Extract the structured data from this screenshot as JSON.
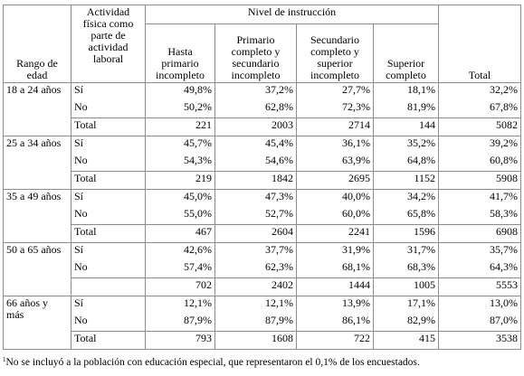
{
  "table": {
    "header": {
      "age": "Rango de edad",
      "activity": "Actividad física como parte de actividad laboral",
      "level": "Nivel de instrucción",
      "columns": [
        "Hasta primario incompleto",
        "Primario completo y secundario incompleto",
        "Secundario completo y superior incompleto",
        "Superior completo"
      ],
      "total": "Total"
    },
    "groups": [
      {
        "label": "18 a 24 años",
        "rows": [
          {
            "label": "Sí",
            "cells": [
              "49,8%",
              "37,2%",
              "27,7%",
              "18,1%",
              "32,2%"
            ]
          },
          {
            "label": "No",
            "cells": [
              "50,2%",
              "62,8%",
              "72,3%",
              "81,9%",
              "67,8%"
            ]
          },
          {
            "label": "Total",
            "cells": [
              221,
              2003,
              2714,
              144,
              5082
            ]
          }
        ]
      },
      {
        "label": "25 a 34 años",
        "rows": [
          {
            "label": "Sí",
            "cells": [
              "45,7%",
              "45,4%",
              "36,1%",
              "35,2%",
              "39,2%"
            ]
          },
          {
            "label": "No",
            "cells": [
              "54,3%",
              "54,6%",
              "63,9%",
              "64,8%",
              "60,8%"
            ]
          },
          {
            "label": "Total",
            "cells": [
              219,
              1842,
              2695,
              1152,
              5908
            ]
          }
        ]
      },
      {
        "label": "35 a 49 años",
        "rows": [
          {
            "label": "Sí",
            "cells": [
              "45,0%",
              "47,3%",
              "40,0%",
              "34,2%",
              "41,7%"
            ]
          },
          {
            "label": "No",
            "cells": [
              "55,0%",
              "52,7%",
              "60,0%",
              "65,8%",
              "58,3%"
            ]
          },
          {
            "label": "Total",
            "cells": [
              467,
              2604,
              2241,
              1596,
              6908
            ]
          }
        ]
      },
      {
        "label": "50 a 65 años",
        "rows": [
          {
            "label": "Sí",
            "cells": [
              "42,6%",
              "37,7%",
              "31,9%",
              "31,7%",
              "35,7%"
            ]
          },
          {
            "label": "No",
            "cells": [
              "57,4%",
              "62,3%",
              "68,1%",
              "68,3%",
              "64,3%"
            ]
          },
          {
            "label": null,
            "cells": [
              702,
              2402,
              1444,
              1005,
              5553
            ]
          }
        ]
      },
      {
        "label": "66 años y más",
        "rows": [
          {
            "label": "Sí",
            "cells": [
              "12,1%",
              "12,1%",
              "13,9%",
              "17,1%",
              "13,0%"
            ]
          },
          {
            "label": "No",
            "cells": [
              "87,9%",
              "87,9%",
              "86,1%",
              "82,9%",
              "87,0%"
            ]
          },
          {
            "label": "Total",
            "cells": [
              793,
              1608,
              722,
              415,
              3538
            ]
          }
        ]
      }
    ],
    "footnote_mark": "1",
    "footnote": "No se incluyó a la población con educación especial, que representaron el 0,1% de los encuestados."
  }
}
